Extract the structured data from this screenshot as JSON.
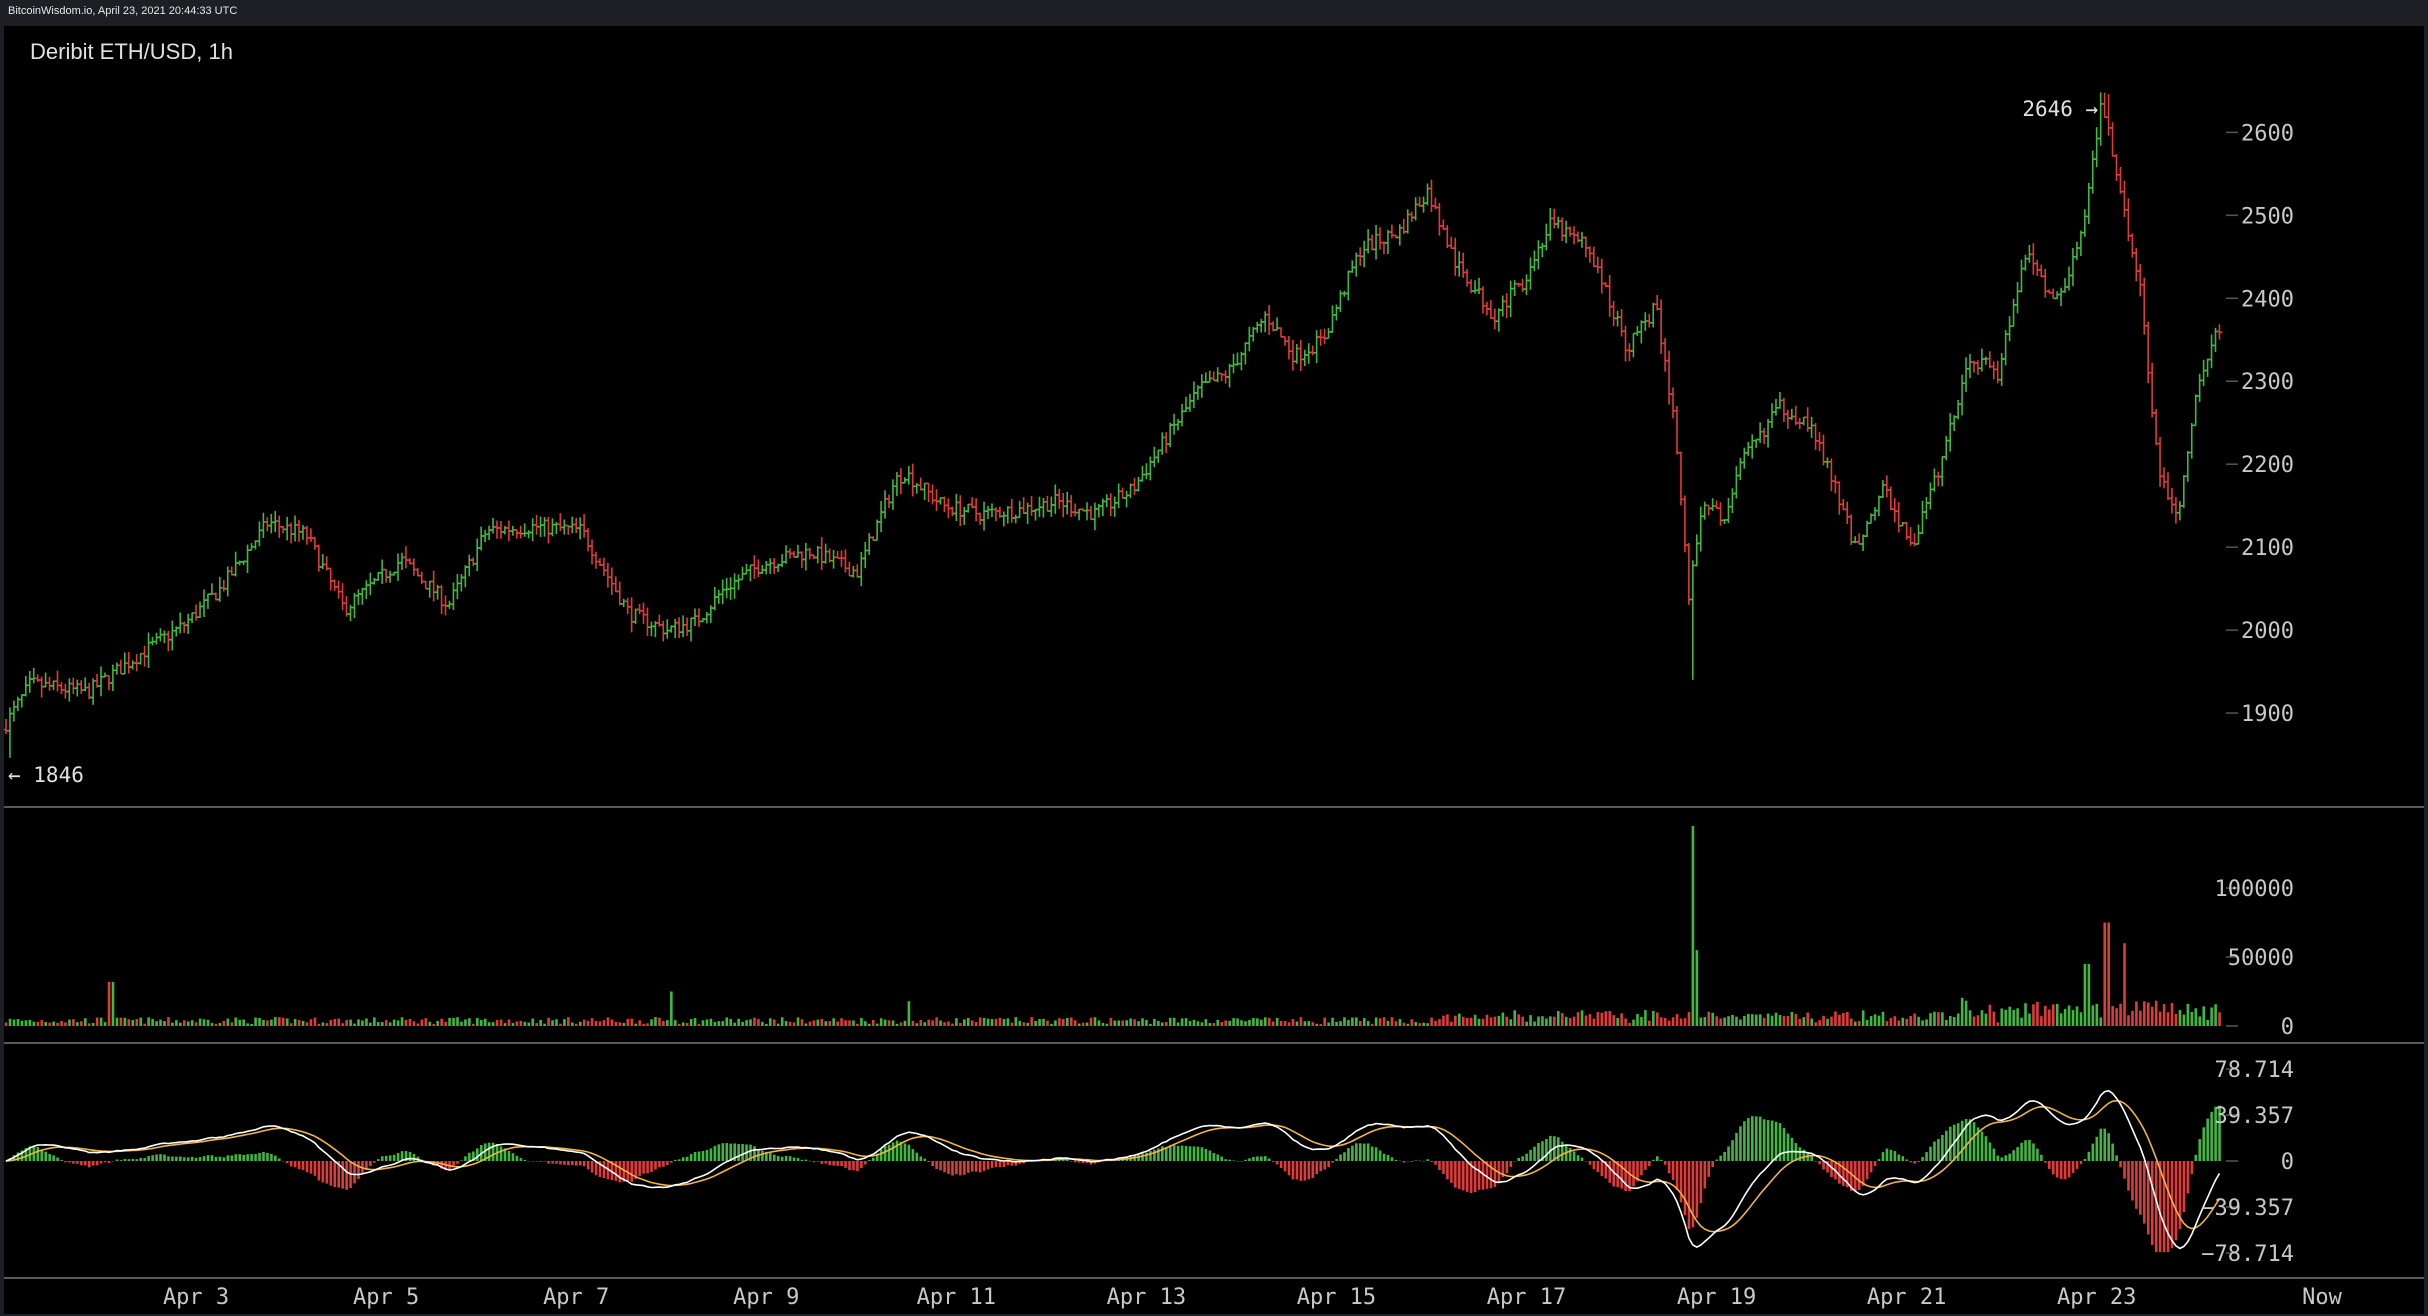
{
  "header": {
    "source_line": "BitcoinWisdom.io, April 23, 2021 20:44:33 UTC",
    "pair_title": "Deribit ETH/USD, 1h"
  },
  "colors": {
    "background": "#000000",
    "frame": "#1d1f24",
    "up": "#3fb83f",
    "down": "#e03a3a",
    "text": "#e0e0e0",
    "axis_text": "#c8c8c8",
    "divider": "#5a5a5a",
    "macd_line": "#ffffff",
    "signal_line": "#f0b347"
  },
  "chart_data": [
    {
      "type": "ohlc",
      "title": "Deribit ETH/USD, 1h",
      "x_tick_labels": [
        "Apr 3",
        "Apr 5",
        "Apr 7",
        "Apr 9",
        "Apr 11",
        "Apr 13",
        "Apr 15",
        "Apr 17",
        "Apr 19",
        "Apr 21",
        "Apr 23",
        "Now"
      ],
      "y_ticks": [
        1900,
        2000,
        2100,
        2200,
        2300,
        2400,
        2500,
        2600
      ],
      "ylim": [
        1800,
        2680
      ],
      "annotations": {
        "low_label": "← 1846",
        "high_label": "2646 →",
        "low": 1846,
        "high": 2646
      },
      "path_days": [
        0,
        0.3,
        0.9,
        1.5,
        1.9,
        2.3,
        2.8,
        3.2,
        3.6,
        4.2,
        4.7,
        5.1,
        5.6,
        6.1,
        6.6,
        7.0,
        7.3,
        7.6,
        8.0,
        8.5,
        9.0,
        9.4,
        9.5,
        9.9,
        10.3,
        10.7,
        11.1,
        11.5,
        11.9,
        12.3,
        12.6,
        12.9,
        13.3,
        13.6,
        13.9,
        14.3,
        14.7,
        15.0,
        15.3,
        15.7,
        16.0,
        16.3,
        16.7,
        17.1,
        17.4,
        17.6,
        17.75,
        17.9,
        18.1,
        18.3,
        18.7,
        19.0,
        19.2,
        19.5,
        19.8,
        20.1,
        20.4,
        20.7,
        21.0,
        21.3,
        21.6,
        21.9,
        22.1,
        22.3,
        22.5,
        22.7,
        22.9,
        23.1,
        23.3
      ],
      "path_prices": [
        1880,
        1935,
        1925,
        1975,
        2005,
        2050,
        2130,
        2115,
        2025,
        2085,
        2030,
        2120,
        2125,
        2120,
        2020,
        2000,
        2010,
        2050,
        2080,
        2095,
        2070,
        2180,
        2190,
        2150,
        2140,
        2145,
        2155,
        2140,
        2170,
        2240,
        2290,
        2310,
        2380,
        2330,
        2350,
        2460,
        2480,
        2530,
        2440,
        2380,
        2420,
        2490,
        2460,
        2340,
        2390,
        2250,
        2040,
        2160,
        2130,
        2200,
        2270,
        2250,
        2200,
        2100,
        2170,
        2100,
        2200,
        2330,
        2310,
        2460,
        2390,
        2480,
        2640,
        2520,
        2410,
        2180,
        2140,
        2290,
        2360
      ],
      "wick_extremes": [
        {
          "day": 17.75,
          "low": 1940
        },
        {
          "day": 0.05,
          "low": 1846
        },
        {
          "day": 22.1,
          "high": 2646
        }
      ]
    },
    {
      "type": "bar",
      "name": "volume",
      "y_ticks": [
        0,
        50000,
        100000
      ],
      "ylim": [
        0,
        145000
      ],
      "spikes": [
        {
          "day": 17.75,
          "value": 145000
        },
        {
          "day": 17.8,
          "value": 55000
        },
        {
          "day": 22.1,
          "value": 75000
        },
        {
          "day": 22.3,
          "value": 60000
        },
        {
          "day": 21.9,
          "value": 45000
        },
        {
          "day": 7.0,
          "value": 25000
        },
        {
          "day": 1.1,
          "value": 32000
        },
        {
          "day": 9.5,
          "value": 18000
        }
      ]
    },
    {
      "type": "macd",
      "y_ticks": [
        78.714,
        39.357,
        0,
        -39.357,
        -78.714
      ],
      "y_tick_labels": [
        "78.714",
        "39.357",
        "0",
        "−39.357",
        "−78.714"
      ],
      "ylim": [
        -78.714,
        78.714
      ]
    }
  ]
}
